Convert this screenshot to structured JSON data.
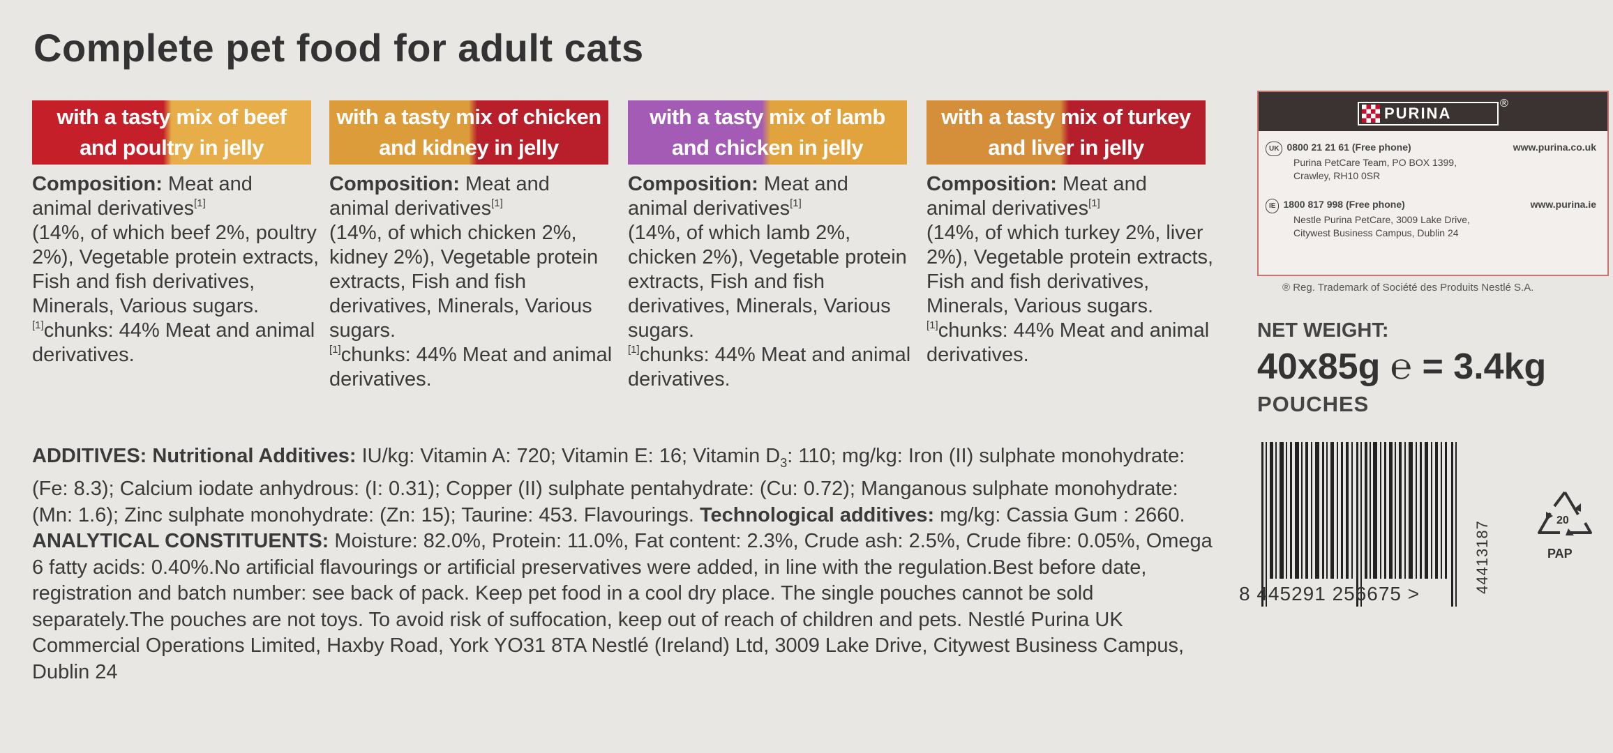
{
  "title": "Complete pet food for adult cats",
  "variants": [
    {
      "banner_line1": "with a tasty mix of beef",
      "banner_line2": "and poultry in jelly",
      "comp_label": "Composition:",
      "comp_lines": [
        " Meat and",
        "animal derivatives"
      ],
      "comp_body": "(14%, of which beef 2%, poultry 2%), Vegetable protein extracts, Fish and fish derivatives, Minerals, Various sugars.",
      "chunks": "chunks: 44% Meat and animal derivatives."
    },
    {
      "banner_line1": "with a tasty mix of chicken",
      "banner_line2": "and kidney in jelly",
      "comp_label": "Composition:",
      "comp_lines": [
        " Meat and",
        "animal derivatives"
      ],
      "comp_body": "(14%, of which chicken 2%, kidney 2%), Vegetable protein extracts, Fish and fish derivatives, Minerals, Various sugars.",
      "chunks": "chunks: 44% Meat and animal derivatives."
    },
    {
      "banner_line1": "with a tasty mix of lamb",
      "banner_line2": "and chicken in jelly",
      "comp_label": "Composition:",
      "comp_lines": [
        " Meat and",
        "animal derivatives"
      ],
      "comp_body": "(14%, of which lamb 2%, chicken 2%), Vegetable protein extracts, Fish and fish derivatives, Minerals, Various sugars.",
      "chunks": "chunks: 44% Meat and animal derivatives."
    },
    {
      "banner_line1": "with a tasty mix of turkey",
      "banner_line2": "and liver in jelly",
      "comp_label": "Composition:",
      "comp_lines": [
        " Meat and",
        "animal derivatives"
      ],
      "comp_body": "(14%, of which turkey 2%, liver 2%), Vegetable protein extracts, Fish and fish derivatives, Minerals, Various sugars.",
      "chunks": "chunks: 44% Meat and animal derivatives."
    }
  ],
  "footnote_mark": "[1]",
  "additives": {
    "label1": "ADDITIVES: Nutritional Additives:",
    "text1": " IU/kg: Vitamin A: 720; Vitamin E: 16; Vitamin D",
    "d3_sub": "3",
    "text2": ": 110; mg/kg: Iron (II) sulphate monohydrate: (Fe: 8.3); Calcium iodate anhydrous: (I: 0.31); Copper (II) sulphate pentahydrate: (Cu: 0.72); Manganous sulphate monohydrate: (Mn: 1.6); Zinc sulphate monohydrate: (Zn: 15); Taurine: 453. Flavourings. ",
    "label2": "Technological additives:",
    "text3": " mg/kg: Cassia Gum : 2660. ",
    "label3": "ANALYTICAL CONSTITUENTS:",
    "text4": " Moisture: 82.0%, Protein: 11.0%, Fat content: 2.3%, Crude ash: 2.5%, Crude fibre: 0.05%, Omega 6 fatty acids: 0.40%.No artificial flavourings or artificial preservatives were added, in line with the regulation.Best before date, registration and batch number: see back of pack. Keep pet food in a cool dry place. The single pouches cannot be sold separately.The pouches are not toys. To avoid risk of suffocation, keep out of reach of children and pets. Nestlé Purina UK Commercial Operations Limited, Haxby Road, York YO31 8TA Nestlé (Ireland) Ltd, 3009 Lake Drive, Citywest Business Campus, Dublin 24"
  },
  "brand": {
    "name": "PURINA",
    "reg": "®",
    "uk_badge": "UK",
    "uk_phone": "0800 21 21 61 (Free phone)",
    "uk_web": "www.purina.co.uk",
    "uk_addr1": "Purina PetCare Team, PO BOX 1399,",
    "uk_addr2": "Crawley, RH10 0SR",
    "ie_badge": "IE",
    "ie_phone": "1800 817 998 (Free phone)",
    "ie_web": "www.purina.ie",
    "ie_addr1": "Nestle Purina PetCare, 3009 Lake Drive,",
    "ie_addr2": "Citywest Business Campus, Dublin 24",
    "trademark": "® Reg. Trademark of Société des Produits Nestlé S.A."
  },
  "net_weight": {
    "label": "NET WEIGHT:",
    "value": "40x85g ℮ = 3.4kg",
    "unit": "POUCHES"
  },
  "barcode": {
    "digits": "8  445291  256675 >",
    "side_code": "44413187"
  },
  "recycle": {
    "number": "20",
    "label": "PAP"
  }
}
